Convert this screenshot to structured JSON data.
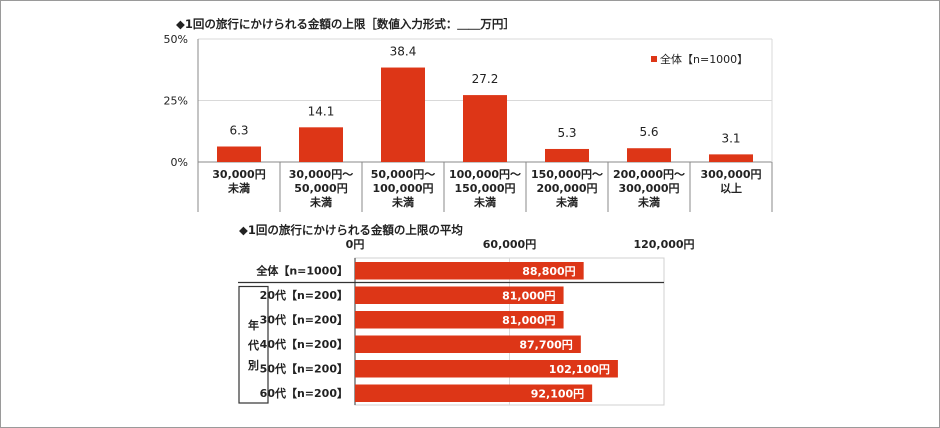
{
  "chart_data": [
    {
      "type": "bar",
      "title": "◆1回の旅行にかけられる金額の上限［数値入力形式：＿＿万円］",
      "ylim": [
        0,
        50
      ],
      "y_ticks": [
        "0%",
        "25%",
        "50%"
      ],
      "grid": true,
      "legend_position": "top-right",
      "categories": [
        [
          "30,000円",
          "未満"
        ],
        [
          "30,000円～",
          "50,000円",
          "未満"
        ],
        [
          "50,000円～",
          "100,000円",
          "未満"
        ],
        [
          "100,000円～",
          "150,000円",
          "未満"
        ],
        [
          "150,000円～",
          "200,000円",
          "未満"
        ],
        [
          "200,000円～",
          "300,000円",
          "未満"
        ],
        [
          "300,000円",
          "以上"
        ]
      ],
      "series": [
        {
          "name": "全体【n=1000】",
          "color": "#dd3617",
          "values": [
            6.3,
            14.1,
            38.4,
            27.2,
            5.3,
            5.6,
            3.1
          ],
          "labels": [
            "6.3",
            "14.1",
            "38.4",
            "27.2",
            "5.3",
            "5.6",
            "3.1"
          ]
        }
      ]
    },
    {
      "type": "bar",
      "orientation": "horizontal",
      "title": "◆1回の旅行にかけられる金額の上限の平均",
      "xlim": [
        0,
        120000
      ],
      "x_ticks": [
        "0円",
        "60,000円",
        "120,000円"
      ],
      "group_label": "年代別",
      "color": "#dd3617",
      "rows": [
        {
          "label": "全体【n=1000】",
          "value": 88800,
          "value_label": "88,800円"
        },
        {
          "label": "20代【n=200】",
          "value": 81000,
          "value_label": "81,000円"
        },
        {
          "label": "30代【n=200】",
          "value": 81000,
          "value_label": "81,000円"
        },
        {
          "label": "40代【n=200】",
          "value": 87700,
          "value_label": "87,700円"
        },
        {
          "label": "50代【n=200】",
          "value": 102100,
          "value_label": "102,100円"
        },
        {
          "label": "60代【n=200】",
          "value": 92100,
          "value_label": "92,100円"
        }
      ]
    }
  ]
}
